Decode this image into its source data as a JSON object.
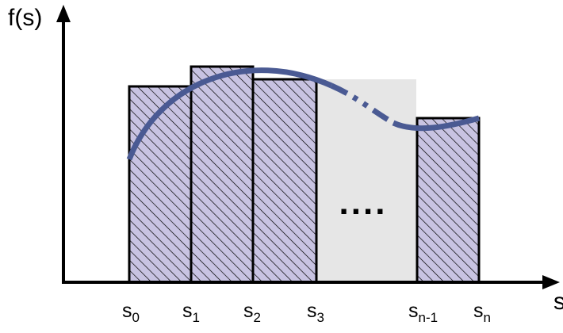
{
  "diagram": {
    "y_axis_label": "f(s)",
    "x_axis_label": "s",
    "ellipsis": "....",
    "ticks": [
      {
        "main": "s",
        "sub": "0"
      },
      {
        "main": "s",
        "sub": "1"
      },
      {
        "main": "s",
        "sub": "2"
      },
      {
        "main": "s",
        "sub": "3"
      },
      {
        "main": "s",
        "sub": "n-1"
      },
      {
        "main": "s",
        "sub": "n"
      }
    ],
    "colors": {
      "bar_fill": "#c8c3e2",
      "hatch": "#000000",
      "gap_fill": "#e6e6e6",
      "curve": "#4a5a93",
      "axis": "#000000"
    }
  }
}
